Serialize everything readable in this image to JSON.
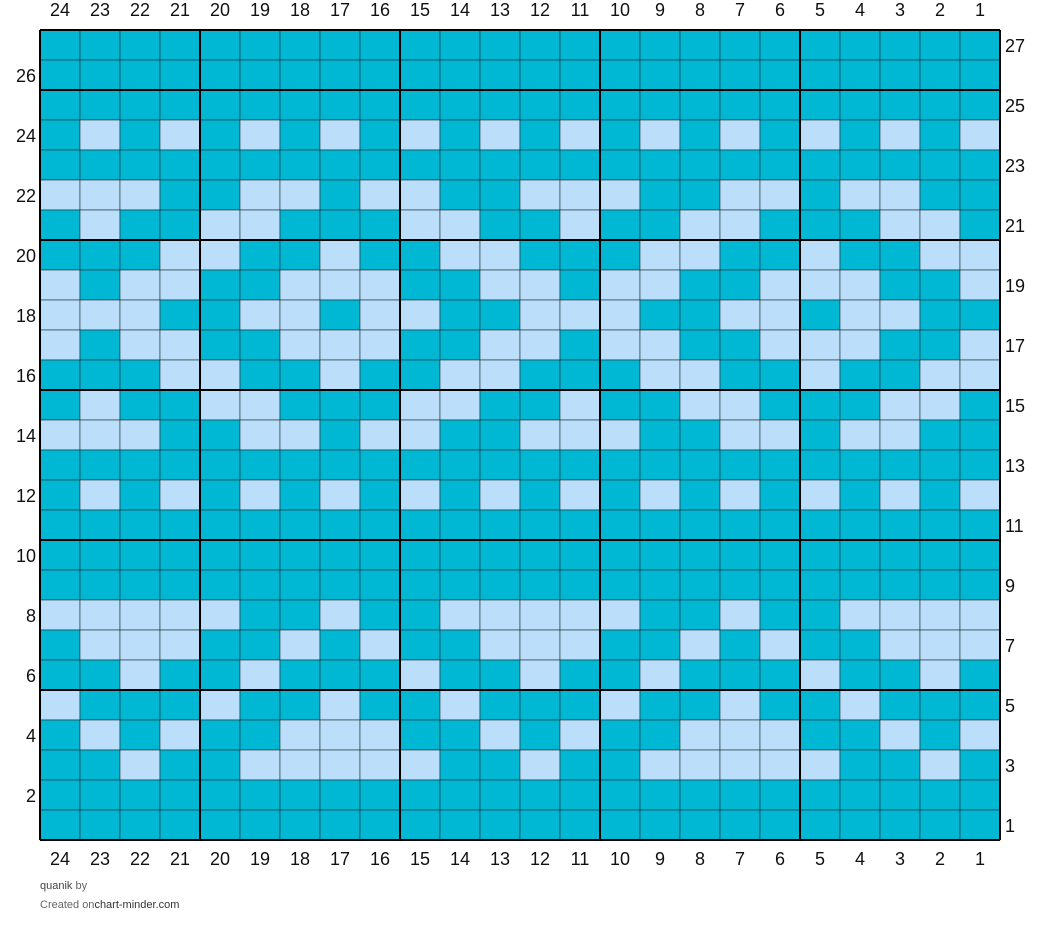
{
  "chart": {
    "columns": 24,
    "rows": 27,
    "colors": {
      "dark": "#00b8d4",
      "light": "#bbdefb",
      "grid_line": "#1a2b33",
      "major_line": "#000000",
      "number_text": "#111111"
    },
    "column_numbers": [
      "24",
      "23",
      "22",
      "21",
      "20",
      "19",
      "18",
      "17",
      "16",
      "15",
      "14",
      "13",
      "12",
      "11",
      "10",
      "9",
      "8",
      "7",
      "6",
      "5",
      "4",
      "3",
      "2",
      "1"
    ],
    "left_row_numbers": [
      "26",
      "24",
      "22",
      "20",
      "18",
      "16",
      "14",
      "12",
      "10",
      "8",
      "6",
      "4",
      "2"
    ],
    "right_row_numbers": [
      "27",
      "25",
      "23",
      "21",
      "19",
      "17",
      "15",
      "13",
      "11",
      "9",
      "7",
      "5",
      "3",
      "1"
    ],
    "grid_legend": {
      "D": "dark teal stitch",
      "L": "light blue stitch"
    },
    "grid_rows_top_to_bottom": [
      "DDDDDDDDDDDDDDDDDDDDDDDD",
      "DDDDDDDDDDDDDDDDDDDDDDDD",
      "DDDDDDDDDDDDDDDDDDDDDDDD",
      "DLDLDLDLDLDLDLDLDLDLDLDL",
      "DDDDDDDDDDDDDDDDDDDDDDDD",
      "LLLDDLLDLLDDLLLDDLLDLLDD",
      "DLDDLLDDDLLDDLDDLLDDDLLD",
      "DDDLLDDLDDLLDDDLLDDLDDLL",
      "LDLLDDLLLDDLLDLLDDLLLDDL",
      "LLLDDLLDLLDDLLLDDLLDLLDD",
      "LDLLDDLLLDDLLDLLDDLLLDDL",
      "DDDLLDDLDDLLDDDLLDDLDDLL",
      "DLDDLLDDDLLDDLDDLLDDDLLD",
      "LLLDDLLDLLDDLLLDDLLDLLDD",
      "DDDDDDDDDDDDDDDDDDDDDDDD",
      "DLDLDLDLDLDLDLDLDLDLDLDL",
      "DDDDDDDDDDDDDDDDDDDDDDDD",
      "DDDDDDDDDDDDDDDDDDDDDDDD",
      "DDDDDDDDDDDDDDDDDDDDDDDD",
      "LLLLLDDLDDLLLLLDDLDDLLLL",
      "DLLLDDLDLDDLLLDDLDLDDLLL",
      "DDLDDLDDDLDDLDDLDDDLDDLD",
      "LDDDLDDLDDLDDDLDDLDDLDDD",
      "DLDLDDLLLDDLDLDDLLLDDLDL",
      "DDLDDLLLLLDDLDDLLLLLDDLD",
      "DDDDDDDDDDDDDDDDDDDDDDDD",
      "DDDDDDDDDDDDDDDDDDDDDDDD"
    ]
  },
  "footer": {
    "author": "quanik",
    "by": "by",
    "created_on": "Created on",
    "site": "chart-minder.com"
  }
}
